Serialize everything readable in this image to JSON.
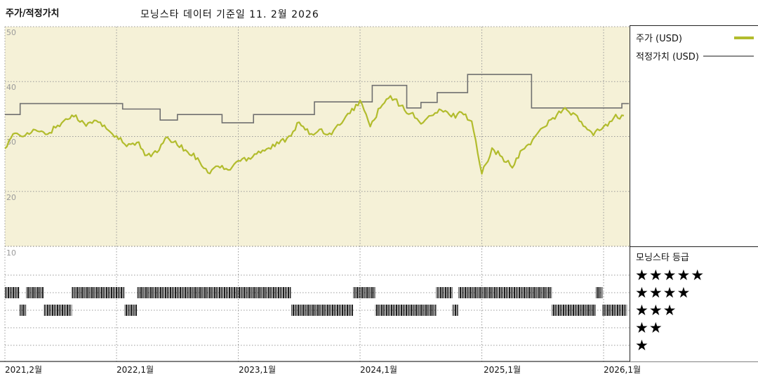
{
  "header": {
    "section_label": "주가/적정가치",
    "title": "모닝스타 데이터 기준일 11. 2월 2026"
  },
  "legend": {
    "price_label": "주가 (USD)",
    "fair_value_label": "적정가치 (USD)",
    "rating_title": "모닝스타 등급",
    "star_rows": [
      "★★★★★",
      "★★★★",
      "★★★",
      "★★",
      "★"
    ]
  },
  "colors": {
    "price_line": "#b2bc2d",
    "fair_value_line": "#707070",
    "plot_background": "#f5f1d7",
    "grid": "#999999",
    "rating_ticks": "#1a1a1a"
  },
  "chart_data": {
    "type": "line",
    "title": "모닝스타 데이터 기준일 11. 2월 2026",
    "x_unit": "months since 2021-02",
    "x_tick_months": [
      0,
      11,
      23,
      35,
      47,
      59
    ],
    "x_tick_labels": [
      "2021,2월",
      "2022,1월",
      "2023,1월",
      "2024,1월",
      "2025,1월",
      "2026,1월"
    ],
    "ylim": [
      10,
      50
    ],
    "y_tick_labels": [
      "50",
      "40",
      "30",
      "20",
      "10"
    ],
    "y_ticks": [
      50,
      40,
      30,
      20,
      10
    ],
    "grid": true,
    "legend_position": "right",
    "series": [
      {
        "name": "주가 (USD)",
        "style": "line",
        "x": [
          0,
          1,
          2,
          3,
          4,
          5,
          6,
          7,
          8,
          9,
          10,
          11,
          12,
          13,
          14,
          15,
          16,
          17,
          18,
          19,
          20,
          21,
          22,
          23,
          24,
          25,
          26,
          27,
          28,
          29,
          30,
          31,
          32,
          33,
          34,
          35,
          36,
          37,
          38,
          39,
          40,
          41,
          42,
          43,
          44,
          45,
          46,
          47,
          48,
          49,
          50,
          51,
          52,
          53,
          54,
          55,
          56,
          57,
          58,
          59,
          60,
          61
        ],
        "values": [
          27.8,
          30.6,
          30.2,
          31.2,
          30.4,
          31.6,
          33.2,
          33.9,
          31.9,
          32.9,
          31.4,
          30.1,
          28.2,
          28.9,
          26.6,
          27.1,
          29.9,
          28.4,
          27.2,
          26.1,
          23.4,
          24.6,
          23.9,
          25.6,
          26.1,
          27.3,
          27.9,
          28.7,
          30.1,
          32.6,
          30.4,
          31.3,
          30.6,
          32.1,
          34.2,
          36.6,
          31.8,
          35.2,
          37.4,
          35.6,
          34.2,
          32.3,
          33.8,
          34.8,
          33.6,
          34.4,
          32.8,
          23.2,
          27.9,
          26.3,
          24.3,
          27.6,
          29.4,
          31.6,
          33.4,
          34.9,
          34.3,
          31.9,
          30.2,
          31.8,
          33.4,
          33.8
        ]
      },
      {
        "name": "적정가치 (USD)",
        "style": "step",
        "segments": [
          [
            0,
            1.5,
            34.0
          ],
          [
            1.5,
            11.6,
            36.0
          ],
          [
            11.6,
            15.3,
            35.0
          ],
          [
            15.3,
            17.0,
            33.0
          ],
          [
            17.0,
            21.4,
            34.0
          ],
          [
            21.4,
            24.5,
            32.5
          ],
          [
            24.5,
            30.5,
            34.0
          ],
          [
            30.5,
            36.2,
            36.3
          ],
          [
            36.2,
            39.6,
            39.3
          ],
          [
            39.6,
            41.0,
            35.2
          ],
          [
            41.0,
            42.6,
            36.2
          ],
          [
            42.6,
            45.6,
            38.0
          ],
          [
            45.6,
            51.9,
            41.3
          ],
          [
            51.9,
            60.8,
            35.2
          ],
          [
            60.8,
            61.5,
            36.0
          ]
        ]
      }
    ],
    "rating_history": {
      "row_levels": [
        5,
        4,
        3,
        2,
        1
      ],
      "segments": [
        [
          0,
          1.45,
          4
        ],
        [
          1.45,
          2.1,
          3
        ],
        [
          2.1,
          3.8,
          4
        ],
        [
          3.8,
          6.6,
          3
        ],
        [
          6.6,
          11.8,
          4
        ],
        [
          11.8,
          13.0,
          3
        ],
        [
          13.0,
          28.2,
          4
        ],
        [
          28.2,
          34.3,
          3
        ],
        [
          34.3,
          36.5,
          4
        ],
        [
          36.5,
          42.5,
          3
        ],
        [
          42.5,
          44.1,
          4
        ],
        [
          44.1,
          44.7,
          3
        ],
        [
          44.7,
          53.9,
          4
        ],
        [
          53.9,
          58.2,
          3
        ],
        [
          58.2,
          58.9,
          4
        ],
        [
          58.9,
          61.3,
          3
        ]
      ]
    }
  }
}
